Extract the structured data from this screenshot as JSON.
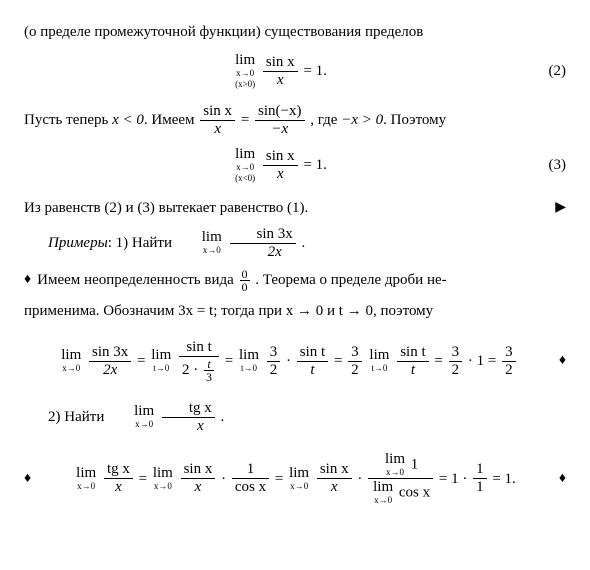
{
  "line1": "(о пределе промежуточной функции) существования пределов",
  "eq2": {
    "lim_op": "lim",
    "lim_sub1": "x→0",
    "lim_sub2": "(x>0)",
    "frac_num": "sin x",
    "frac_den": "x",
    "rhs": " = 1.",
    "num": "(2)"
  },
  "line2a": "Пусть теперь ",
  "line2b": "x < 0",
  "line2c": ". Имеем ",
  "frac1": {
    "num": "sin x",
    "den": "x"
  },
  "line2d": " = ",
  "frac2": {
    "num": "sin(−x)",
    "den": "−x"
  },
  "line2e": ", где ",
  "line2f": "−x > 0",
  "line2g": ". Поэтому",
  "eq3": {
    "lim_op": "lim",
    "lim_sub1": "x→0",
    "lim_sub2": "(x<0)",
    "frac_num": "sin x",
    "frac_den": "x",
    "rhs": " = 1.",
    "num": "(3)"
  },
  "line3": "Из равенств (2) и (3) вытекает равенство (1).",
  "tri": "▶",
  "ex_label": "Примеры",
  "ex1a": ": 1) Найти ",
  "ex1_lim": {
    "op": "lim",
    "sub": "x→0"
  },
  "ex1_frac": {
    "num": "sin 3x",
    "den": "2x"
  },
  "ex1b": ".",
  "diamond": "♦",
  "line4a": "Имеем неопределенность вида ",
  "frac00": {
    "num": "0",
    "den": "0"
  },
  "line4b": ". Теорема о пределе дроби не-",
  "line5": "применима. Обозначим 3x = t; тогда при x → 0 и t → 0, поэтому",
  "chain1": {
    "p1_lim": {
      "op": "lim",
      "sub": "x→0"
    },
    "p1_frac": {
      "num": "sin 3x",
      "den": "2x"
    },
    "p2_lim": {
      "op": "lim",
      "sub": "t→0"
    },
    "p2_frac_num": "sin t",
    "p2_frac_den_a": "2 · ",
    "p2_frac_den_frac": {
      "num": "t",
      "den": "3"
    },
    "p3_lim": {
      "op": "lim",
      "sub": "t→0"
    },
    "p3_frac": {
      "num": "3",
      "den": "2"
    },
    "p3_mid": " · ",
    "p3_frac2": {
      "num": "sin t",
      "den": "t"
    },
    "p4_a": {
      "num": "3",
      "den": "2"
    },
    "p4_lim": {
      "op": "lim",
      "sub": "t→0"
    },
    "p4_frac": {
      "num": "sin t",
      "den": "t"
    },
    "p5_a": {
      "num": "3",
      "den": "2"
    },
    "p5_b": " · 1 = ",
    "p5_c": {
      "num": "3",
      "den": "2"
    }
  },
  "ex2a": "2) Найти ",
  "ex2_lim": {
    "op": "lim",
    "sub": "x→0"
  },
  "ex2_frac": {
    "num": "tg x",
    "den": "x"
  },
  "ex2b": ".",
  "chain2": {
    "p1_lim": {
      "op": "lim",
      "sub": "x→0"
    },
    "p1_frac": {
      "num": "tg x",
      "den": "x"
    },
    "p2_lim": {
      "op": "lim",
      "sub": "x→0"
    },
    "p2_frac": {
      "num": "sin x",
      "den": "x"
    },
    "p2_mid": " · ",
    "p2_frac2": {
      "num": "1",
      "den": "cos x"
    },
    "p3_lim": {
      "op": "lim",
      "sub": "x→0"
    },
    "p3_frac": {
      "num": "sin x",
      "den": "x"
    },
    "p3_mid": " · ",
    "p3_bignum_lim": {
      "op": "lim",
      "sub": "x→0"
    },
    "p3_bignum_v": " 1",
    "p3_bigden_lim": {
      "op": "lim",
      "sub": "x→0"
    },
    "p3_bigden_v": " cos x",
    "p4": " = 1 · ",
    "p4_frac": {
      "num": "1",
      "den": "1"
    },
    "p4b": " = 1."
  }
}
